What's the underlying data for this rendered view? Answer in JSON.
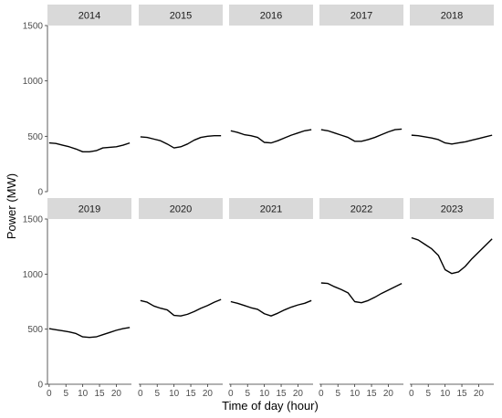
{
  "chart_data": {
    "type": "line",
    "layout": "facet-grid",
    "xlabel": "Time of day (hour)",
    "ylabel": "Power (MW)",
    "xlim": [
      -0.5,
      24.5
    ],
    "ylim": [
      0,
      1500
    ],
    "x_ticks": [
      0,
      5,
      10,
      15,
      20
    ],
    "y_ticks": [
      0,
      500,
      1000,
      1500
    ],
    "grid": false,
    "x": [
      0,
      2,
      4,
      6,
      8,
      10,
      12,
      14,
      16,
      18,
      20,
      22,
      24
    ],
    "facets": [
      {
        "label": "2014",
        "values": [
          440,
          435,
          420,
          405,
          385,
          360,
          360,
          370,
          395,
          400,
          405,
          420,
          440
        ]
      },
      {
        "label": "2015",
        "values": [
          495,
          490,
          475,
          460,
          430,
          395,
          405,
          430,
          465,
          490,
          500,
          505,
          505
        ]
      },
      {
        "label": "2016",
        "values": [
          550,
          535,
          515,
          505,
          490,
          445,
          440,
          460,
          485,
          510,
          530,
          550,
          560
        ]
      },
      {
        "label": "2017",
        "values": [
          560,
          550,
          530,
          510,
          490,
          455,
          455,
          470,
          490,
          515,
          540,
          560,
          565
        ]
      },
      {
        "label": "2018",
        "values": [
          510,
          505,
          495,
          485,
          470,
          440,
          430,
          440,
          450,
          465,
          480,
          495,
          510
        ]
      },
      {
        "label": "2019",
        "values": [
          505,
          495,
          485,
          475,
          460,
          430,
          425,
          430,
          450,
          470,
          490,
          505,
          515
        ]
      },
      {
        "label": "2020",
        "values": [
          760,
          745,
          710,
          690,
          675,
          625,
          620,
          635,
          660,
          690,
          715,
          745,
          770
        ]
      },
      {
        "label": "2021",
        "values": [
          750,
          735,
          715,
          695,
          680,
          640,
          620,
          645,
          675,
          700,
          720,
          735,
          760
        ]
      },
      {
        "label": "2022",
        "values": [
          920,
          915,
          885,
          860,
          830,
          750,
          740,
          760,
          790,
          825,
          855,
          885,
          915
        ]
      },
      {
        "label": "2023",
        "values": [
          1330,
          1310,
          1270,
          1230,
          1170,
          1040,
          1005,
          1020,
          1070,
          1140,
          1200,
          1260,
          1320
        ]
      }
    ]
  }
}
